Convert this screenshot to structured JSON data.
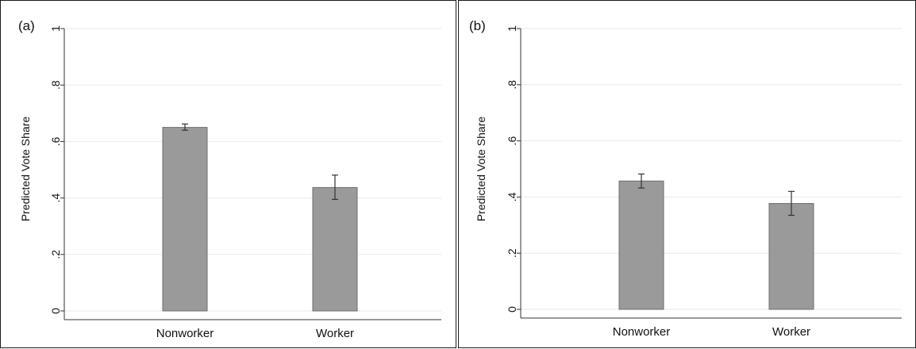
{
  "colors": {
    "bar": "#9a9a9a",
    "bar_outline": "#6e6e6e",
    "grid": "#eaeaea",
    "axis": "#333333",
    "frame": "#1a1a1a"
  },
  "chart_data": [
    {
      "type": "bar",
      "panel_label": "(a)",
      "categories": [
        "Nonworker",
        "Worker"
      ],
      "values": [
        0.65,
        0.437
      ],
      "error_low": [
        0.64,
        0.395
      ],
      "error_high": [
        0.662,
        0.481
      ],
      "ylabel": "Predicted Vote Share",
      "xlabel": "",
      "ylim": [
        0,
        1
      ],
      "yticks": [
        0,
        0.2,
        0.4,
        0.6,
        0.8,
        1
      ],
      "ytick_labels": [
        "0",
        ".2",
        ".4",
        ".6",
        ".8",
        "1"
      ],
      "grid": true
    },
    {
      "type": "bar",
      "panel_label": "(b)",
      "categories": [
        "Nonworker",
        "Worker"
      ],
      "values": [
        0.457,
        0.377
      ],
      "error_low": [
        0.432,
        0.335
      ],
      "error_high": [
        0.482,
        0.42
      ],
      "ylabel": "Predicted Vote Share",
      "xlabel": "",
      "ylim": [
        0,
        1
      ],
      "yticks": [
        0,
        0.2,
        0.4,
        0.6,
        0.8,
        1
      ],
      "ytick_labels": [
        "0",
        ".2",
        ".4",
        ".6",
        ".8",
        "1"
      ],
      "grid": true
    }
  ]
}
